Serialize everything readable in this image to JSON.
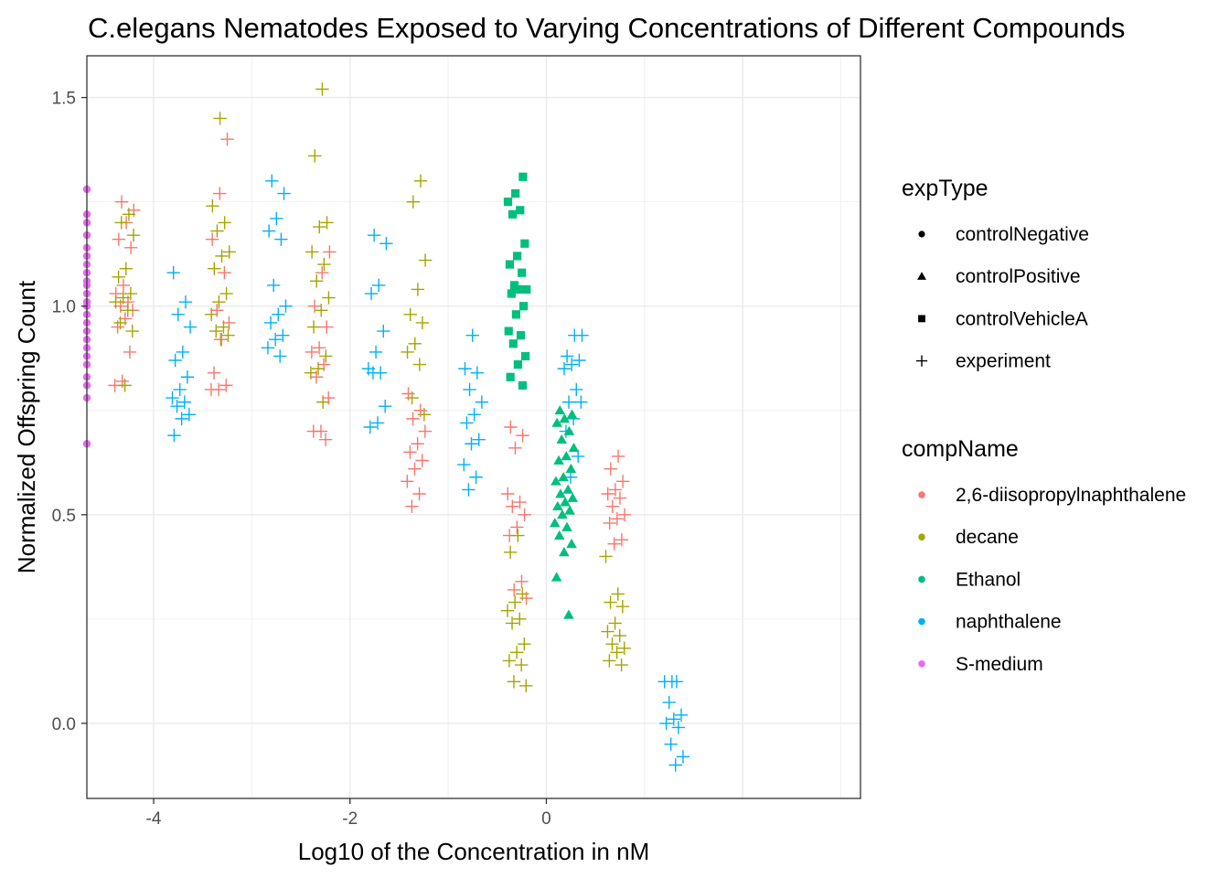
{
  "chart_data": {
    "type": "scatter",
    "title": "C.elegans Nematodes Exposed to Varying Concentrations of Different Compounds",
    "xlabel": "Log10 of the Concentration in nM",
    "ylabel": "Normalized Offspring Count",
    "xlim": [
      -4.68,
      3.2
    ],
    "ylim": [
      -0.18,
      1.6
    ],
    "x_ticks": [
      -4,
      -2,
      0
    ],
    "x_tick_labels": [
      "-4",
      "-2",
      "0"
    ],
    "y_ticks": [
      0.0,
      0.5,
      1.0,
      1.5
    ],
    "y_tick_labels": [
      "0.0",
      "0.5",
      "1.0",
      "1.5"
    ],
    "grid": true,
    "legend_position": "right",
    "legends": [
      {
        "title": "expType",
        "items": [
          {
            "label": "controlNegative",
            "shape": "circle"
          },
          {
            "label": "controlPositive",
            "shape": "triangle"
          },
          {
            "label": "controlVehicleA",
            "shape": "square"
          },
          {
            "label": "experiment",
            "shape": "plus"
          }
        ]
      },
      {
        "title": "compName",
        "items": [
          {
            "label": "2,6-diisopropylnaphthalene",
            "color": "#F8766D"
          },
          {
            "label": "decane",
            "color": "#A3A500"
          },
          {
            "label": "Ethanol",
            "color": "#00BF7D"
          },
          {
            "label": "naphthalene",
            "color": "#00B0F6"
          },
          {
            "label": "S-medium",
            "color": "#E76BF3"
          }
        ]
      }
    ],
    "groups": [
      {
        "compName": "S-medium",
        "expType": "controlNegative",
        "x": -4.68,
        "y": [
          1.28,
          1.22,
          1.2,
          1.17,
          1.14,
          1.12,
          1.1,
          1.08,
          1.06,
          1.05,
          1.03,
          1.01,
          1.0,
          0.98,
          0.96,
          0.94,
          0.92,
          0.9,
          0.88,
          0.86,
          0.83,
          0.81,
          0.78,
          0.67
        ]
      },
      {
        "compName": "2,6-diisopropylnaphthalene",
        "expType": "experiment",
        "x": -4.3,
        "y": [
          1.25,
          1.23,
          1.2,
          1.16,
          1.14,
          1.05,
          1.03,
          1.01,
          1.0,
          0.99,
          0.97,
          0.95,
          0.89,
          0.82,
          0.81
        ]
      },
      {
        "compName": "decane",
        "expType": "experiment",
        "x": -4.3,
        "y": [
          1.22,
          1.2,
          1.17,
          1.09,
          1.07,
          1.03,
          1.02,
          1.01,
          0.99,
          0.96,
          0.94,
          0.81
        ]
      },
      {
        "compName": "naphthalene",
        "expType": "experiment",
        "x": -3.72,
        "y": [
          1.08,
          1.01,
          0.98,
          0.95,
          0.89,
          0.87,
          0.83,
          0.8,
          0.78,
          0.77,
          0.76,
          0.74,
          0.73,
          0.69
        ]
      },
      {
        "compName": "decane",
        "expType": "experiment",
        "x": -3.32,
        "y": [
          1.45,
          1.24,
          1.2,
          1.18,
          1.13,
          1.12,
          1.09,
          1.03,
          1.01,
          0.98,
          0.95,
          0.94,
          0.93,
          0.92
        ]
      },
      {
        "compName": "2,6-diisopropylnaphthalene",
        "expType": "experiment",
        "x": -3.32,
        "y": [
          1.4,
          1.27,
          1.16,
          1.08,
          0.99,
          0.96,
          0.92,
          0.84,
          0.81,
          0.8,
          0.8
        ]
      },
      {
        "compName": "naphthalene",
        "expType": "experiment",
        "x": -2.74,
        "y": [
          1.3,
          1.27,
          1.21,
          1.18,
          1.16,
          1.05,
          1.0,
          0.98,
          0.96,
          0.93,
          0.92,
          0.9,
          0.88
        ]
      },
      {
        "compName": "decane",
        "expType": "experiment",
        "x": -2.3,
        "y": [
          1.52,
          1.36,
          1.2,
          1.19,
          1.13,
          1.1,
          1.06,
          1.02,
          0.99,
          0.95,
          0.88,
          0.85,
          0.84,
          0.77
        ]
      },
      {
        "compName": "2,6-diisopropylnaphthalene",
        "expType": "experiment",
        "x": -2.3,
        "y": [
          1.13,
          1.08,
          1.0,
          0.95,
          0.9,
          0.89,
          0.86,
          0.83,
          0.78,
          0.7,
          0.7,
          0.68
        ]
      },
      {
        "compName": "naphthalene",
        "expType": "experiment",
        "x": -1.72,
        "y": [
          1.17,
          1.15,
          1.05,
          1.03,
          0.94,
          0.89,
          0.85,
          0.84,
          0.84,
          0.76,
          0.72,
          0.71
        ]
      },
      {
        "compName": "decane",
        "expType": "experiment",
        "x": -1.32,
        "y": [
          1.3,
          1.25,
          1.11,
          1.04,
          0.98,
          0.96,
          0.91,
          0.89,
          0.86,
          0.78,
          0.74
        ]
      },
      {
        "compName": "2,6-diisopropylnaphthalene",
        "expType": "experiment",
        "x": -1.32,
        "y": [
          0.79,
          0.75,
          0.73,
          0.7,
          0.67,
          0.65,
          0.63,
          0.61,
          0.58,
          0.55,
          0.52
        ]
      },
      {
        "compName": "naphthalene",
        "expType": "experiment",
        "x": -0.74,
        "y": [
          0.93,
          0.85,
          0.84,
          0.8,
          0.77,
          0.74,
          0.72,
          0.68,
          0.67,
          0.62,
          0.59,
          0.56
        ]
      },
      {
        "compName": "Ethanol",
        "expType": "controlVehicleA",
        "x": -0.3,
        "y": [
          1.31,
          1.27,
          1.25,
          1.23,
          1.22,
          1.15,
          1.12,
          1.1,
          1.08,
          1.05,
          1.04,
          1.04,
          1.03,
          1.0,
          0.98,
          0.94,
          0.93,
          0.91,
          0.88,
          0.86,
          0.83,
          0.81
        ]
      },
      {
        "compName": "2,6-diisopropylnaphthalene",
        "expType": "experiment",
        "x": -0.3,
        "y": [
          0.71,
          0.69,
          0.66,
          0.55,
          0.53,
          0.52,
          0.5,
          0.47,
          0.45,
          0.34,
          0.32,
          0.3
        ]
      },
      {
        "compName": "decane",
        "expType": "experiment",
        "x": -0.3,
        "y": [
          0.45,
          0.41,
          0.31,
          0.29,
          0.27,
          0.25,
          0.24,
          0.19,
          0.17,
          0.15,
          0.14,
          0.1,
          0.09
        ]
      },
      {
        "compName": "naphthalene",
        "expType": "experiment",
        "x": 0.28,
        "y": [
          0.93,
          0.93,
          0.88,
          0.87,
          0.86,
          0.85,
          0.8,
          0.77,
          0.77,
          0.73,
          0.7,
          0.64,
          0.59
        ]
      },
      {
        "compName": "Ethanol",
        "expType": "controlPositive",
        "x": 0.18,
        "y": [
          0.75,
          0.74,
          0.73,
          0.72,
          0.7,
          0.68,
          0.66,
          0.64,
          0.63,
          0.61,
          0.59,
          0.58,
          0.56,
          0.55,
          0.54,
          0.53,
          0.52,
          0.51,
          0.5,
          0.48,
          0.47,
          0.45,
          0.43,
          0.41,
          0.35,
          0.26
        ]
      },
      {
        "compName": "2,6-diisopropylnaphthalene",
        "expType": "experiment",
        "x": 0.7,
        "y": [
          0.64,
          0.61,
          0.58,
          0.56,
          0.55,
          0.54,
          0.52,
          0.5,
          0.49,
          0.48,
          0.44,
          0.43
        ]
      },
      {
        "compName": "decane",
        "expType": "experiment",
        "x": 0.7,
        "y": [
          0.4,
          0.31,
          0.29,
          0.28,
          0.24,
          0.22,
          0.21,
          0.19,
          0.18,
          0.17,
          0.15,
          0.14
        ]
      },
      {
        "compName": "naphthalene",
        "expType": "experiment",
        "x": 1.3,
        "y": [
          0.1,
          0.1,
          0.1,
          0.05,
          0.02,
          0.01,
          0.0,
          -0.01,
          -0.05,
          -0.08,
          -0.1
        ]
      }
    ]
  }
}
